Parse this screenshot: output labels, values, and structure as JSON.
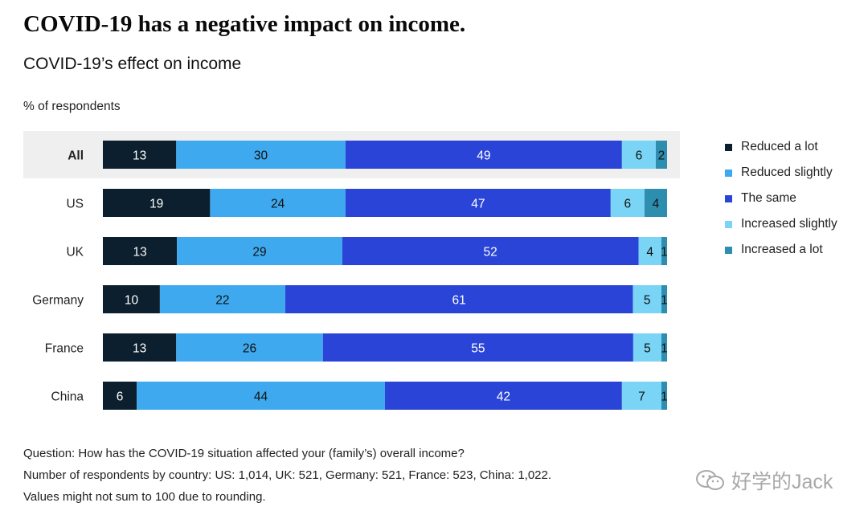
{
  "title": "COVID-19 has a negative impact on income.",
  "subtitle": "COVID-19’s effect on income",
  "unit_label": "% of respondents",
  "notes": [
    "Question: How has the COVID-19 situation affected your (family’s) overall income?",
    "Number of respondents by country: US: 1,014, UK: 521, Germany: 521, France: 523, China: 1,022.",
    "Values might not sum to 100 due to rounding."
  ],
  "watermark": "好学的Jack",
  "chart_data": {
    "type": "bar",
    "orientation": "horizontal",
    "stacked": true,
    "title": "COVID-19’s effect on income",
    "ylabel": "% of respondents",
    "xlim": [
      0,
      100
    ],
    "grid": false,
    "legend_position": "right",
    "highlighted_category": "All",
    "categories": [
      "All",
      "US",
      "UK",
      "Germany",
      "France",
      "China"
    ],
    "series": [
      {
        "name": "Reduced a lot",
        "color": "#0b1f2e",
        "label_color": "#ffffff",
        "values": [
          13,
          19,
          13,
          10,
          13,
          6
        ]
      },
      {
        "name": "Reduced slightly",
        "color": "#3ea9ee",
        "label_color": "#111111",
        "values": [
          30,
          24,
          29,
          22,
          26,
          44
        ]
      },
      {
        "name": "The same",
        "color": "#2a44d8",
        "label_color": "#ffffff",
        "values": [
          49,
          47,
          52,
          61,
          55,
          42
        ]
      },
      {
        "name": "Increased slightly",
        "color": "#79d4f6",
        "label_color": "#111111",
        "values": [
          6,
          6,
          4,
          5,
          5,
          7
        ]
      },
      {
        "name": "Increased a lot",
        "color": "#2e8eb0",
        "label_color": "#111111",
        "values": [
          2,
          4,
          1,
          1,
          1,
          1
        ]
      }
    ]
  }
}
